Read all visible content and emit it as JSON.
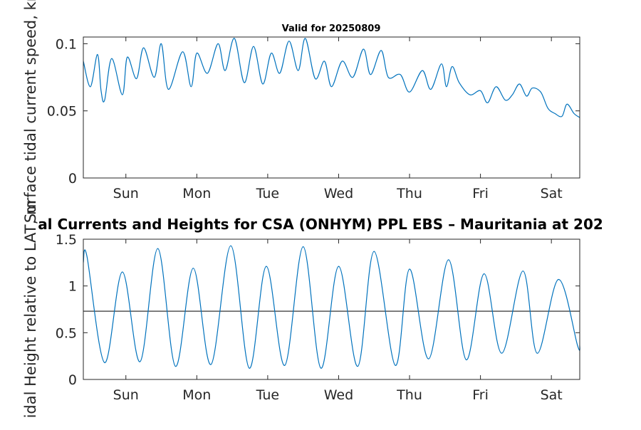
{
  "figure": {
    "small_title": "Valid for 20250809",
    "main_title": "al Currents and Heights for CSA (ONHYM) PPL EBS  – Mauritania at 202"
  },
  "chart_data": [
    {
      "type": "line",
      "title": "Valid for 20250809",
      "xlabel": "",
      "ylabel": "Surface tidal current speed, kn",
      "xlim": [
        0,
        7
      ],
      "ylim": [
        0,
        0.105
      ],
      "yticks": [
        0,
        0.05,
        0.1
      ],
      "ytick_labels": [
        "0",
        "0.05",
        "0.1"
      ],
      "xticks": [
        0.6,
        1.6,
        2.6,
        3.6,
        4.6,
        5.6,
        6.6
      ],
      "xtick_labels": [
        "Sun",
        "Mon",
        "Tue",
        "Wed",
        "Thu",
        "Fri",
        "Sat"
      ],
      "grid": false,
      "line_color": "#0072bd",
      "series": [
        {
          "x": [
            0,
            0.1,
            0.2,
            0.25,
            0.3,
            0.4,
            0.55,
            0.62,
            0.75,
            0.85,
            1.0,
            1.1,
            1.2,
            1.4,
            1.52,
            1.6,
            1.75,
            1.9,
            2.0,
            2.13,
            2.27,
            2.4,
            2.53,
            2.65,
            2.77,
            2.9,
            3.03,
            3.13,
            3.27,
            3.4,
            3.5,
            3.65,
            3.8,
            3.95,
            4.05,
            4.2,
            4.3,
            4.47,
            4.6,
            4.78,
            4.9,
            5.05,
            5.12,
            5.2,
            5.3,
            5.45,
            5.6,
            5.7,
            5.82,
            5.95,
            6.05,
            6.15,
            6.25,
            6.33,
            6.45,
            6.55,
            6.65,
            6.75,
            6.82,
            6.92,
            7.0
          ],
          "y": [
            0.087,
            0.068,
            0.092,
            0.065,
            0.058,
            0.089,
            0.062,
            0.09,
            0.074,
            0.097,
            0.075,
            0.1,
            0.066,
            0.094,
            0.068,
            0.093,
            0.078,
            0.1,
            0.08,
            0.104,
            0.071,
            0.098,
            0.07,
            0.093,
            0.078,
            0.102,
            0.08,
            0.104,
            0.074,
            0.087,
            0.068,
            0.087,
            0.075,
            0.096,
            0.077,
            0.095,
            0.075,
            0.077,
            0.064,
            0.08,
            0.066,
            0.085,
            0.068,
            0.083,
            0.071,
            0.062,
            0.065,
            0.056,
            0.068,
            0.058,
            0.062,
            0.07,
            0.061,
            0.067,
            0.064,
            0.052,
            0.048,
            0.046,
            0.055,
            0.048,
            0.045
          ]
        }
      ]
    },
    {
      "type": "line",
      "title": "al Currents and Heights for CSA (ONHYM) PPL EBS  – Mauritania at 202",
      "xlabel": "",
      "ylabel": "idal Height relative to LAT, m",
      "xlim": [
        0,
        7
      ],
      "ylim": [
        0,
        1.5
      ],
      "yticks": [
        0,
        0.5,
        1,
        1.5
      ],
      "ytick_labels": [
        "0",
        "0.5",
        "1",
        "1.5"
      ],
      "xticks": [
        0.6,
        1.6,
        2.6,
        3.6,
        4.6,
        5.6,
        6.6
      ],
      "xtick_labels": [
        "Sun",
        "Mon",
        "Tue",
        "Wed",
        "Thu",
        "Fri",
        "Sat"
      ],
      "grid": false,
      "line_color": "#0072bd",
      "reference_line": 0.73,
      "reference_color": "#333333",
      "series": [
        {
          "x": [
            0.0,
            0.05,
            0.3,
            0.55,
            0.8,
            1.05,
            1.3,
            1.55,
            1.8,
            2.08,
            2.34,
            2.58,
            2.84,
            3.1,
            3.35,
            3.6,
            3.87,
            4.1,
            4.4,
            4.6,
            4.87,
            5.15,
            5.4,
            5.65,
            5.9,
            6.2,
            6.4,
            6.7,
            6.97,
            7.0
          ],
          "y": [
            1.25,
            1.32,
            0.18,
            1.15,
            0.19,
            1.4,
            0.14,
            1.19,
            0.16,
            1.43,
            0.12,
            1.21,
            0.15,
            1.42,
            0.12,
            1.21,
            0.14,
            1.37,
            0.15,
            1.18,
            0.22,
            1.28,
            0.21,
            1.13,
            0.28,
            1.16,
            0.28,
            1.07,
            0.36,
            0.37
          ]
        }
      ]
    }
  ]
}
